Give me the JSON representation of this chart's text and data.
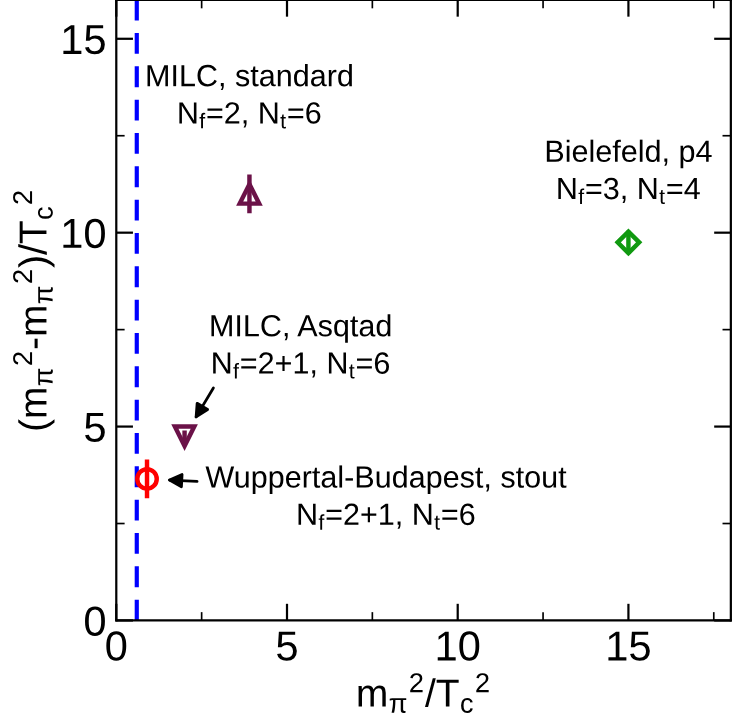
{
  "chart_data": {
    "type": "scatter",
    "xlabel": "m$_{π}$$^{2}$/T$_{c}$$^{2}$",
    "ylabel": "(m$_{π}$$^{2}$-m$_{π}$$^{2}$)/T$_{c}$$^{2}$",
    "xlim": [
      0,
      18
    ],
    "ylim": [
      0,
      16
    ],
    "xticks": [
      0,
      5,
      10,
      15
    ],
    "yticks": [
      0,
      5,
      10,
      15
    ],
    "grid": false,
    "legend": false,
    "series": [
      {
        "color": "#6b1248",
        "marker": "triangle",
        "x": [
          3.9
        ],
        "values": [
          11.0
        ],
        "errors": [
          0.5
        ]
      },
      {
        "color": "#6b1248",
        "marker": "triangle_down",
        "x": [
          2.0
        ],
        "values": [
          4.75
        ],
        "errors": [
          0.15
        ]
      },
      {
        "color": "#ff0000",
        "marker": "circle",
        "x": [
          0.9
        ],
        "values": [
          3.65
        ],
        "errors": [
          0.5
        ]
      },
      {
        "color": "#109910",
        "marker": "diamond",
        "x": [
          15.0
        ],
        "values": [
          9.75
        ],
        "errors": [
          0.3
        ]
      }
    ],
    "ref_lines": [
      {
        "axis": "x",
        "value": 0.6,
        "color": "#0000ff",
        "line_style": "dashed"
      }
    ],
    "annotations": [
      {
        "text": "MILC, standard\nN$_{f}$=2, N$_{t}$=6",
        "x": 3.9,
        "y": 11.0
      },
      {
        "text": "MILC, Asqtad\nN$_{f}$=2+1, N$_{t}$=6",
        "x": 2.0,
        "y": 4.75
      },
      {
        "text": "Wuppertal-Budapest, stout\nN$_{f}$=2+1, N$_{t}$=6",
        "x": 0.9,
        "y": 3.65
      },
      {
        "text": "Bielefeld, p4\nN$_{f}$=3, N$_{t}$=4",
        "x": 15.0,
        "y": 9.75
      }
    ]
  }
}
